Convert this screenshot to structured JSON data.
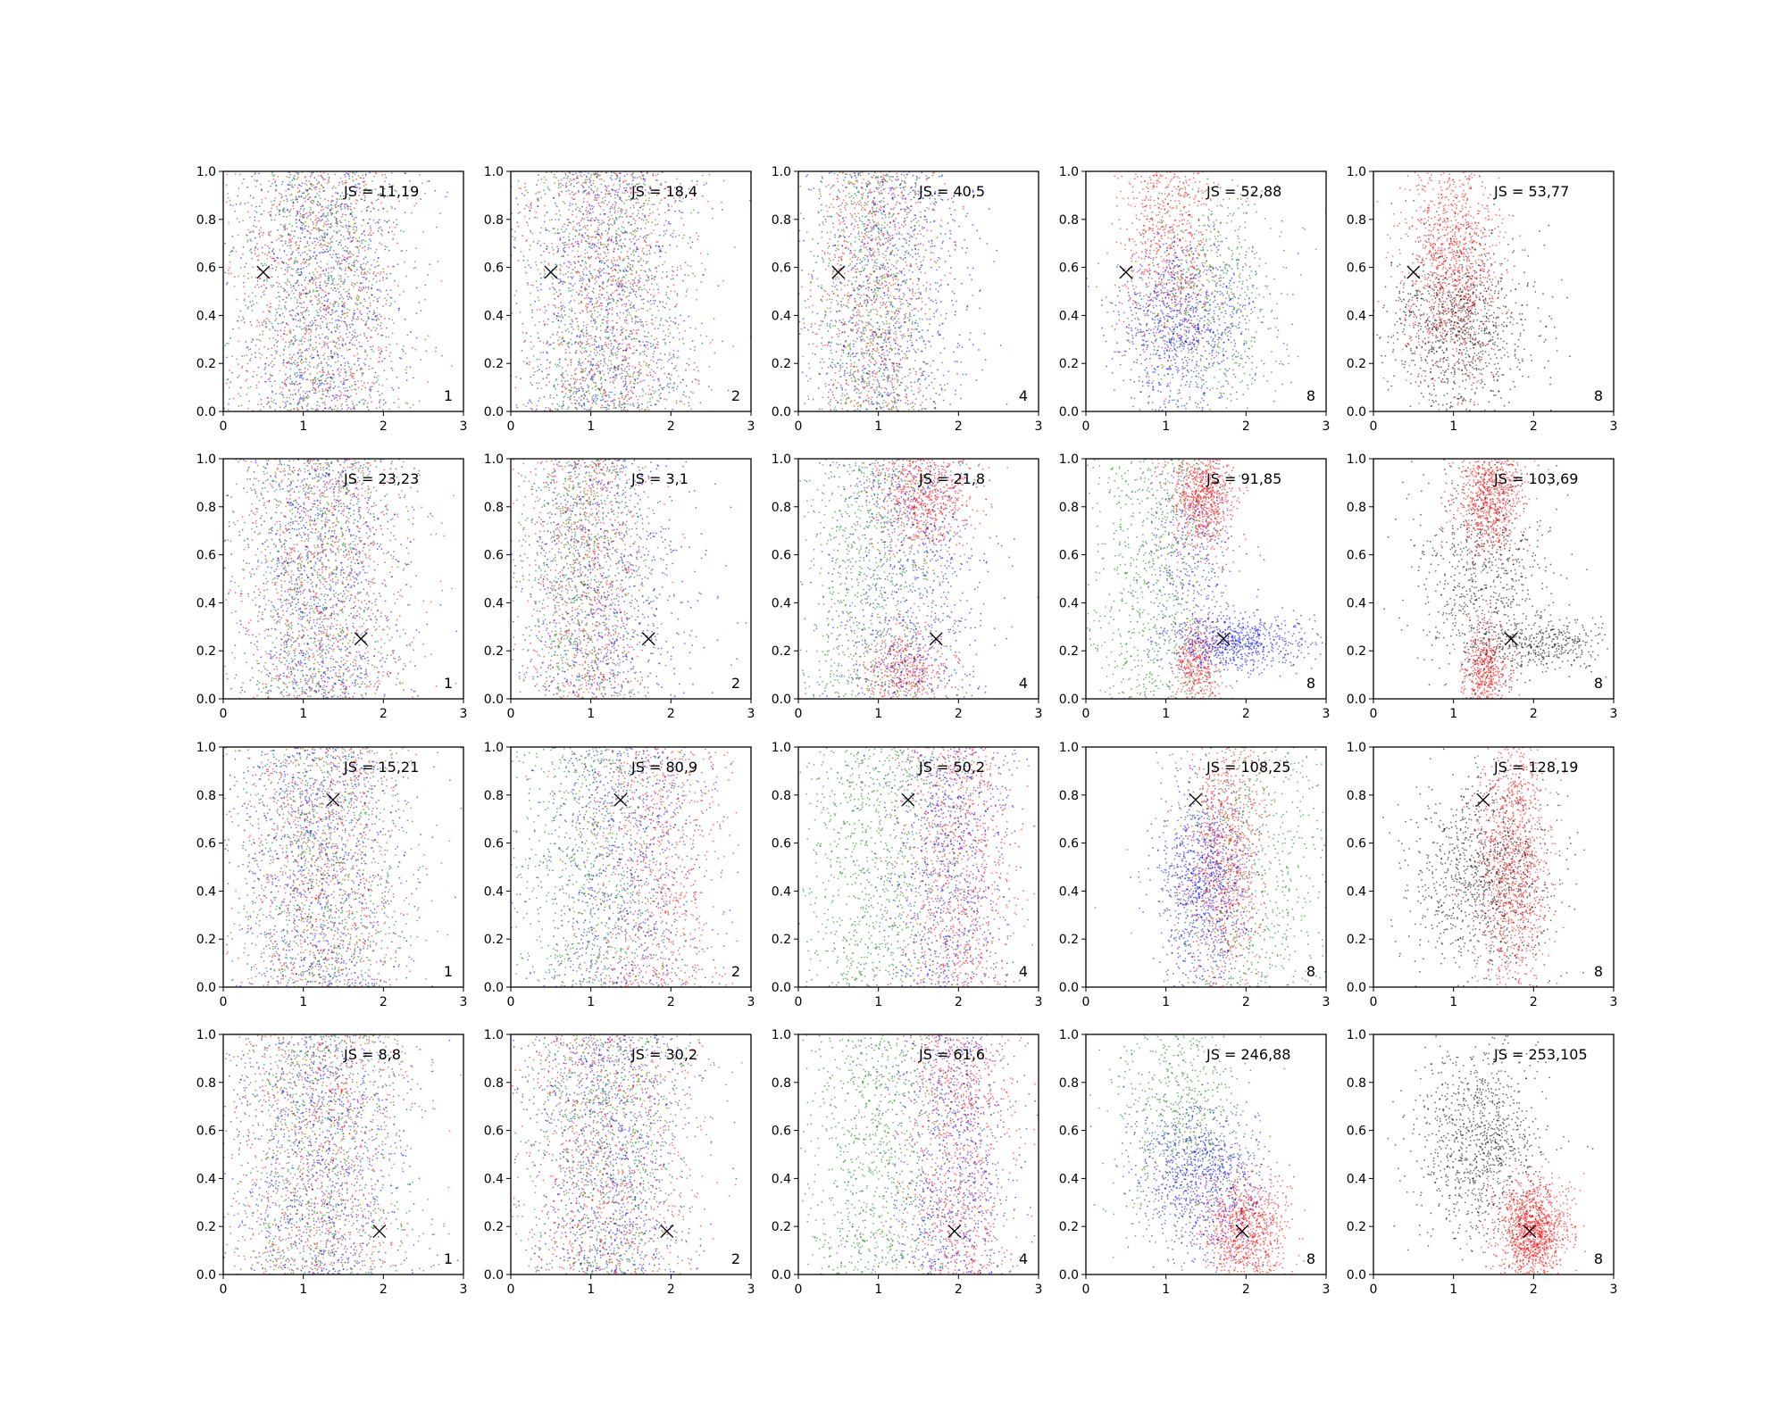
{
  "chart_data": {
    "type": "scatter",
    "layout": {
      "rows": 4,
      "cols": 5
    },
    "x_ticks": [
      "0",
      "1",
      "2",
      "3"
    ],
    "y_ticks": [
      "0.0",
      "0.2",
      "0.4",
      "0.6",
      "0.8",
      "1.0"
    ],
    "xlim": [
      0,
      3
    ],
    "ylim": [
      0,
      1
    ],
    "grid": false,
    "colors": {
      "red": "#ff0000",
      "green": "#008000",
      "blue": "#0000ff",
      "black": "#000000"
    },
    "panels": [
      {
        "row": 0,
        "col": 0,
        "label": "JS = 11,19",
        "k": "1",
        "marker": [
          0.5,
          0.58
        ],
        "mode": "mixed"
      },
      {
        "row": 0,
        "col": 1,
        "label": "JS = 18,4",
        "k": "2",
        "marker": [
          0.5,
          0.58
        ],
        "mode": "mixed"
      },
      {
        "row": 0,
        "col": 2,
        "label": "JS = 40,5",
        "k": "4",
        "marker": [
          0.5,
          0.58
        ],
        "mode": "mixed-left"
      },
      {
        "row": 0,
        "col": 3,
        "label": "JS = 52,88",
        "k": "8",
        "marker": [
          0.5,
          0.58
        ],
        "mode": "clusters-r0"
      },
      {
        "row": 0,
        "col": 4,
        "label": "JS = 53,77",
        "k": "8",
        "marker": [
          0.5,
          0.58
        ],
        "mode": "redblack-r0"
      },
      {
        "row": 1,
        "col": 0,
        "label": "JS = 23,23",
        "k": "1",
        "marker": [
          1.72,
          0.25
        ],
        "mode": "mixed"
      },
      {
        "row": 1,
        "col": 1,
        "label": "JS = 3,1",
        "k": "2",
        "marker": [
          1.72,
          0.25
        ],
        "mode": "mixed-left"
      },
      {
        "row": 1,
        "col": 2,
        "label": "JS = 21,8",
        "k": "4",
        "marker": [
          1.72,
          0.25
        ],
        "mode": "mixed-top-bottom"
      },
      {
        "row": 1,
        "col": 3,
        "label": "JS = 91,85",
        "k": "8",
        "marker": [
          1.72,
          0.25
        ],
        "mode": "clusters-r1"
      },
      {
        "row": 1,
        "col": 4,
        "label": "JS = 103,69",
        "k": "8",
        "marker": [
          1.72,
          0.25
        ],
        "mode": "redblack-r1"
      },
      {
        "row": 2,
        "col": 0,
        "label": "JS = 15,21",
        "k": "1",
        "marker": [
          1.37,
          0.78
        ],
        "mode": "mixed"
      },
      {
        "row": 2,
        "col": 1,
        "label": "JS = 80,9",
        "k": "2",
        "marker": [
          1.37,
          0.78
        ],
        "mode": "mixed-right"
      },
      {
        "row": 2,
        "col": 2,
        "label": "JS = 50,2",
        "k": "4",
        "marker": [
          1.37,
          0.78
        ],
        "mode": "green-left"
      },
      {
        "row": 2,
        "col": 3,
        "label": "JS = 108,25",
        "k": "8",
        "marker": [
          1.37,
          0.78
        ],
        "mode": "clusters-r2"
      },
      {
        "row": 2,
        "col": 4,
        "label": "JS = 128,19",
        "k": "8",
        "marker": [
          1.37,
          0.78
        ],
        "mode": "redblack-r2"
      },
      {
        "row": 3,
        "col": 0,
        "label": "JS = 8,8",
        "k": "1",
        "marker": [
          1.95,
          0.18
        ],
        "mode": "mixed"
      },
      {
        "row": 3,
        "col": 1,
        "label": "JS = 30,2",
        "k": "2",
        "marker": [
          1.95,
          0.18
        ],
        "mode": "mixed"
      },
      {
        "row": 3,
        "col": 2,
        "label": "JS = 61,6",
        "k": "4",
        "marker": [
          1.95,
          0.18
        ],
        "mode": "green-left"
      },
      {
        "row": 3,
        "col": 3,
        "label": "JS = 246,88",
        "k": "8",
        "marker": [
          1.95,
          0.18
        ],
        "mode": "clusters-r3"
      },
      {
        "row": 3,
        "col": 4,
        "label": "JS = 253,105",
        "k": "8",
        "marker": [
          1.95,
          0.18
        ],
        "mode": "redblack-r3"
      }
    ]
  }
}
